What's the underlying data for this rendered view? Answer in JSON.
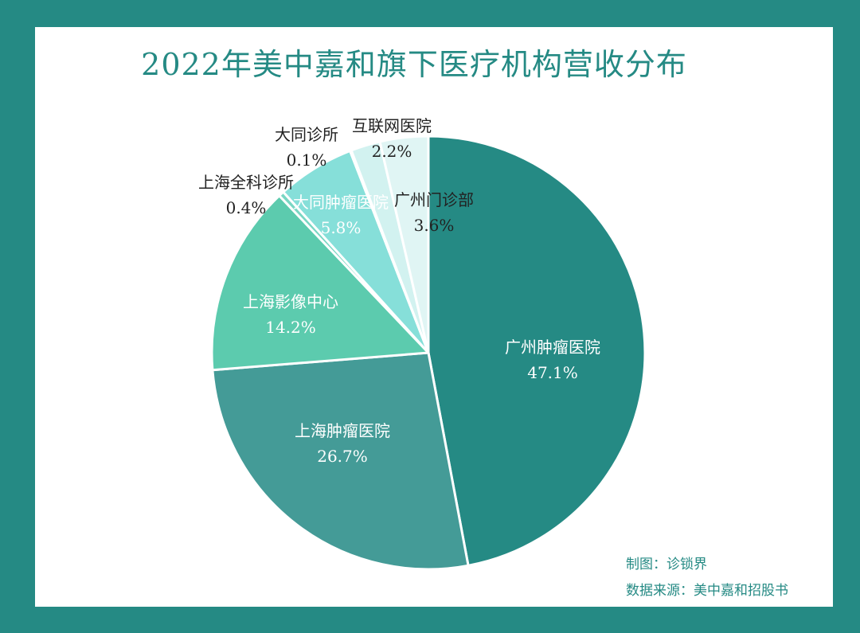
{
  "chart_data": {
    "type": "pie",
    "title": "2022年美中嘉和旗下医疗机构营收分布",
    "slices": [
      {
        "label": "广州肿瘤医院",
        "value": 47.1,
        "value_label": "47.1%",
        "color": "#258a84",
        "text_color": "#ffffff"
      },
      {
        "label": "上海肿瘤医院",
        "value": 26.7,
        "value_label": "26.7%",
        "color": "#449b97",
        "text_color": "#ffffff"
      },
      {
        "label": "上海影像中心",
        "value": 14.2,
        "value_label": "14.2%",
        "color": "#5ccbae",
        "text_color": "#ffffff"
      },
      {
        "label": "上海全科诊所",
        "value": 0.4,
        "value_label": "0.4%",
        "color": "#79d6c3",
        "text_color": "#222222"
      },
      {
        "label": "大同肿瘤医院",
        "value": 5.8,
        "value_label": "5.8%",
        "color": "#86dfd9",
        "text_color": "#ffffff"
      },
      {
        "label": "大同诊所",
        "value": 0.1,
        "value_label": "0.1%",
        "color": "#a8e8e4",
        "text_color": "#222222"
      },
      {
        "label": "互联网医院",
        "value": 2.2,
        "value_label": "2.2%",
        "color": "#d2f2f0",
        "text_color": "#222222"
      },
      {
        "label": "广州门诊部",
        "value": 3.6,
        "value_label": "3.6%",
        "color": "#e0f5f4",
        "text_color": "#222222"
      }
    ]
  },
  "credits": {
    "author": "制图：诊锁界",
    "source": "数据来源：美中嘉和招股书"
  }
}
